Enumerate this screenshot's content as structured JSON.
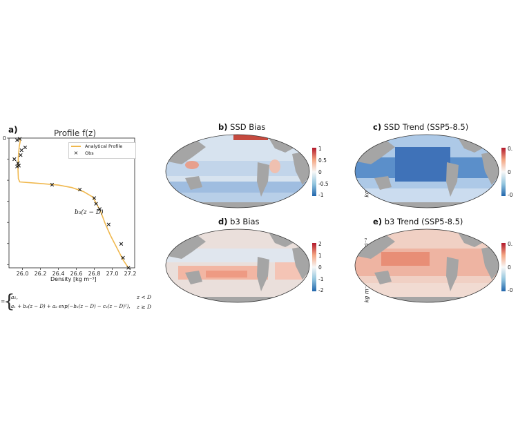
{
  "panel_a": {
    "label": "a)",
    "title": "Profile f(z)",
    "xlabel": "Density [kg m⁻³]",
    "legend": {
      "line": "Analytical Profile",
      "marker": "Obs"
    },
    "annotation": "b₃(z − D)",
    "equation": {
      "prefix": "=",
      "row1_expr": "a₁,",
      "row1_cond": "z < D",
      "row2_expr": "a₁ + b₃(z − D) + a₂ exp(−b₂(z − D) − c₂(z − D)²),",
      "row2_cond": "z ≥ D"
    }
  },
  "chart_data": {
    "type": "scatter",
    "title": "Profile f(z)",
    "xlabel": "Density [kg m⁻³]",
    "ylabel": "",
    "xlim": [
      25.85,
      27.25
    ],
    "x_ticks": [
      "25.8",
      "26.0",
      "26.2",
      "26.4",
      "26.6",
      "26.8",
      "27.0",
      "27.2"
    ],
    "y_ticks": [
      "0",
      "",
      "",
      "",
      "",
      "",
      ""
    ],
    "series": [
      {
        "name": "Analytical Profile",
        "type": "line",
        "color": "#f0b84e",
        "points": [
          [
            25.97,
            0
          ],
          [
            25.975,
            0.08
          ],
          [
            25.965,
            0.2
          ],
          [
            25.955,
            0.45
          ],
          [
            25.95,
            0.75
          ],
          [
            25.955,
            1.0
          ],
          [
            25.97,
            1.08
          ],
          [
            26.2,
            1.12
          ],
          [
            26.4,
            1.16
          ],
          [
            26.55,
            1.22
          ],
          [
            26.68,
            1.32
          ],
          [
            26.78,
            1.45
          ],
          [
            26.82,
            1.6
          ],
          [
            26.87,
            1.8
          ],
          [
            26.92,
            2.1
          ],
          [
            26.98,
            2.4
          ],
          [
            27.05,
            2.7
          ],
          [
            27.12,
            3.0
          ],
          [
            27.18,
            3.2
          ]
        ]
      },
      {
        "name": "Obs",
        "type": "scatter",
        "marker": "x",
        "points": [
          [
            25.94,
            0.05
          ],
          [
            25.97,
            0.02
          ],
          [
            25.99,
            0.3
          ],
          [
            25.98,
            0.42
          ],
          [
            26.03,
            0.23
          ],
          [
            25.91,
            0.52
          ],
          [
            25.95,
            0.62
          ],
          [
            25.96,
            0.68
          ],
          [
            25.94,
            0.7
          ],
          [
            26.33,
            1.15
          ],
          [
            26.64,
            1.27
          ],
          [
            26.8,
            1.48
          ],
          [
            26.82,
            1.62
          ],
          [
            26.86,
            1.75
          ],
          [
            26.96,
            2.13
          ],
          [
            27.1,
            2.61
          ],
          [
            27.12,
            2.95
          ],
          [
            27.18,
            3.2
          ]
        ]
      }
    ]
  },
  "maps": [
    {
      "label": "b)",
      "title": "SSD Bias",
      "colorbar": {
        "ticks": [
          "1",
          "0.5",
          "0",
          "-0.5",
          "-1"
        ],
        "unit": "kg m⁻³ (10 yr)⁻¹"
      }
    },
    {
      "label": "c)",
      "title": "SSD Trend (SSP5-8.5)",
      "colorbar": {
        "ticks": [
          "0.",
          "0",
          "-0"
        ],
        "unit": ""
      }
    },
    {
      "label": "d)",
      "title": "b3 Bias",
      "colorbar": {
        "ticks": [
          "2",
          "1",
          "0",
          "-1",
          "-2"
        ],
        "unit": "kg m⁻⁴ × 10⁻³ (10 yr)⁻¹"
      }
    },
    {
      "label": "e)",
      "title": "b3 Trend (SSP5-8.5)",
      "colorbar": {
        "ticks": [
          "0.",
          "0",
          "-0"
        ],
        "unit": ""
      }
    }
  ],
  "colors": {
    "curve": "#f0b84e",
    "land": "#a5a5a5",
    "cbar_red": "#b2182b",
    "cbar_blue": "#2166ac"
  }
}
